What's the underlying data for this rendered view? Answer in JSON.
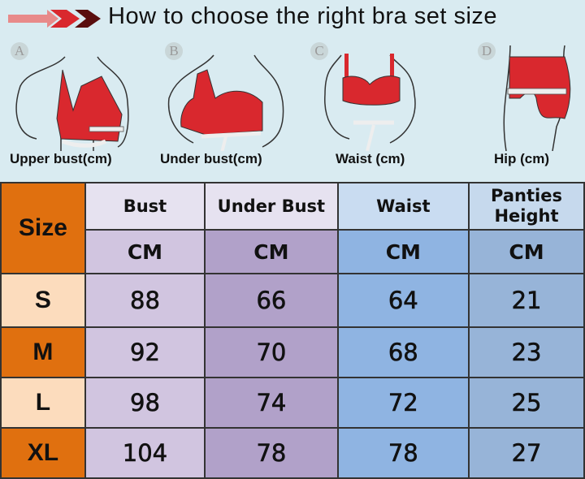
{
  "header": {
    "title": "How to choose the right bra set size"
  },
  "figures": [
    {
      "letter": "A",
      "caption": "Upper bust(cm)",
      "icon": "upper-bust-measure"
    },
    {
      "letter": "B",
      "caption": "Under bust(cm)",
      "icon": "under-bust-measure"
    },
    {
      "letter": "C",
      "caption": "Waist (cm)",
      "icon": "waist-measure"
    },
    {
      "letter": "D",
      "caption": "Hip (cm)",
      "icon": "hip-measure"
    }
  ],
  "colors": {
    "accent_orange": "#e0700f",
    "peach": "#fcdcbd",
    "garment_red": "#d9282e",
    "background": "#d9ebf1"
  },
  "table": {
    "size_header": "Size",
    "columns": [
      "Bust",
      "Under Bust",
      "Waist",
      "Panties Height"
    ],
    "units": [
      "CM",
      "CM",
      "CM",
      "CM"
    ],
    "rows": [
      {
        "size": "S",
        "values": [
          "88",
          "66",
          "64",
          "21"
        ]
      },
      {
        "size": "M",
        "values": [
          "92",
          "70",
          "68",
          "23"
        ]
      },
      {
        "size": "L",
        "values": [
          "98",
          "74",
          "72",
          "25"
        ]
      },
      {
        "size": "XL",
        "values": [
          "104",
          "78",
          "78",
          "27"
        ]
      }
    ]
  }
}
